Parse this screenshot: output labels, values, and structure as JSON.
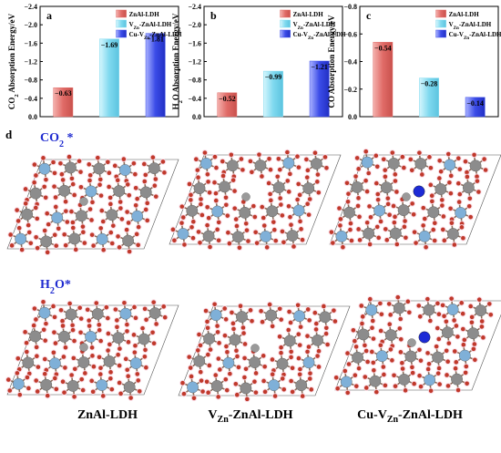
{
  "panels": {
    "a": {
      "letter": "a",
      "ylabel_parts": [
        "CO",
        "2",
        " Absorption Energy/eV"
      ]
    },
    "b": {
      "letter": "b",
      "ylabel_parts": [
        "H",
        "2",
        "O Absorption Energy/eV"
      ]
    },
    "c": {
      "letter": "c",
      "ylabel_parts": [
        "CO Absorption Energy/eV"
      ]
    },
    "d": {
      "letter": "d"
    }
  },
  "legend_entries": [
    {
      "parts": [
        "ZnAl-LDH"
      ]
    },
    {
      "parts": [
        "V",
        "Zn",
        "-ZnAl-LDH"
      ]
    },
    {
      "parts": [
        "Cu-V",
        "Zn",
        "-ZnAl-LDH"
      ]
    }
  ],
  "colors": {
    "series1": "#e06b67",
    "series2": "#7fd9ef",
    "series3": "#3b4ce8",
    "oxygen": "#c0392b",
    "metal_al": "#8c8c8c",
    "metal_zn": "#7fb0d8",
    "copper": "#1d2bd6",
    "hydrogen": "#f2d6d6"
  },
  "chart_data": [
    {
      "type": "bar",
      "panel": "a",
      "categories": [
        "ZnAl-LDH",
        "VZn-ZnAl-LDH",
        "Cu-VZn-ZnAl-LDH"
      ],
      "values": [
        -0.63,
        -1.69,
        -1.81
      ],
      "value_labels": [
        "-0.63",
        "-1.69",
        "-1.81"
      ],
      "ylabel": "CO2 Absorption Energy/eV",
      "ylim": [
        0,
        -2.4
      ],
      "y_inverted": true,
      "yticks": [
        0.0,
        -0.4,
        -0.8,
        -1.2,
        -1.6,
        -2.0,
        -2.4
      ],
      "ytick_labels": [
        "0.0",
        "-0.4",
        "-0.8",
        "-1.2",
        "-1.6",
        "-2.0",
        "-2.4"
      ],
      "legend_position": "top-right"
    },
    {
      "type": "bar",
      "panel": "b",
      "categories": [
        "ZnAl-LDH",
        "VZn-ZnAl-LDH",
        "Cu-VZn-ZnAl-LDH"
      ],
      "values": [
        -0.52,
        -0.99,
        -1.21
      ],
      "value_labels": [
        "-0.52",
        "-0.99",
        "-1.21"
      ],
      "ylabel": "H2O Absorption Energy/eV",
      "ylim": [
        0,
        -2.4
      ],
      "y_inverted": true,
      "yticks": [
        0.0,
        -0.4,
        -0.8,
        -1.2,
        -1.6,
        -2.0,
        -2.4
      ],
      "ytick_labels": [
        "0.0",
        "-0.4",
        "-0.8",
        "-1.2",
        "-1.6",
        "-2.0",
        "-2.4"
      ],
      "legend_position": "top-right"
    },
    {
      "type": "bar",
      "panel": "c",
      "categories": [
        "ZnAl-LDH",
        "VZn-ZnAl-LDH",
        "Cu-VZn-ZnAl-LDH"
      ],
      "values": [
        -0.54,
        -0.28,
        -0.14
      ],
      "value_labels": [
        "-0.54",
        "-0.28",
        "-0.14"
      ],
      "ylabel": "CO Absorption Energy/eV",
      "ylim": [
        0,
        -0.8
      ],
      "y_inverted": true,
      "yticks": [
        0.0,
        -0.2,
        -0.4,
        -0.6,
        -0.8
      ],
      "ytick_labels": [
        "0.0",
        "-0.2",
        "-0.4",
        "-0.6",
        "-0.8"
      ],
      "legend_position": "top-right"
    }
  ],
  "structures": {
    "row_labels": [
      {
        "parts": [
          "CO",
          "2",
          " *"
        ]
      },
      {
        "parts": [
          "H",
          "2",
          "O*"
        ]
      }
    ],
    "bottom_labels": [
      {
        "parts": [
          "ZnAl-LDH"
        ]
      },
      {
        "parts": [
          "V",
          "Zn",
          "-ZnAl-LDH"
        ]
      },
      {
        "parts": [
          "Cu-V",
          "Zn",
          "-ZnAl-LDH"
        ]
      }
    ]
  }
}
